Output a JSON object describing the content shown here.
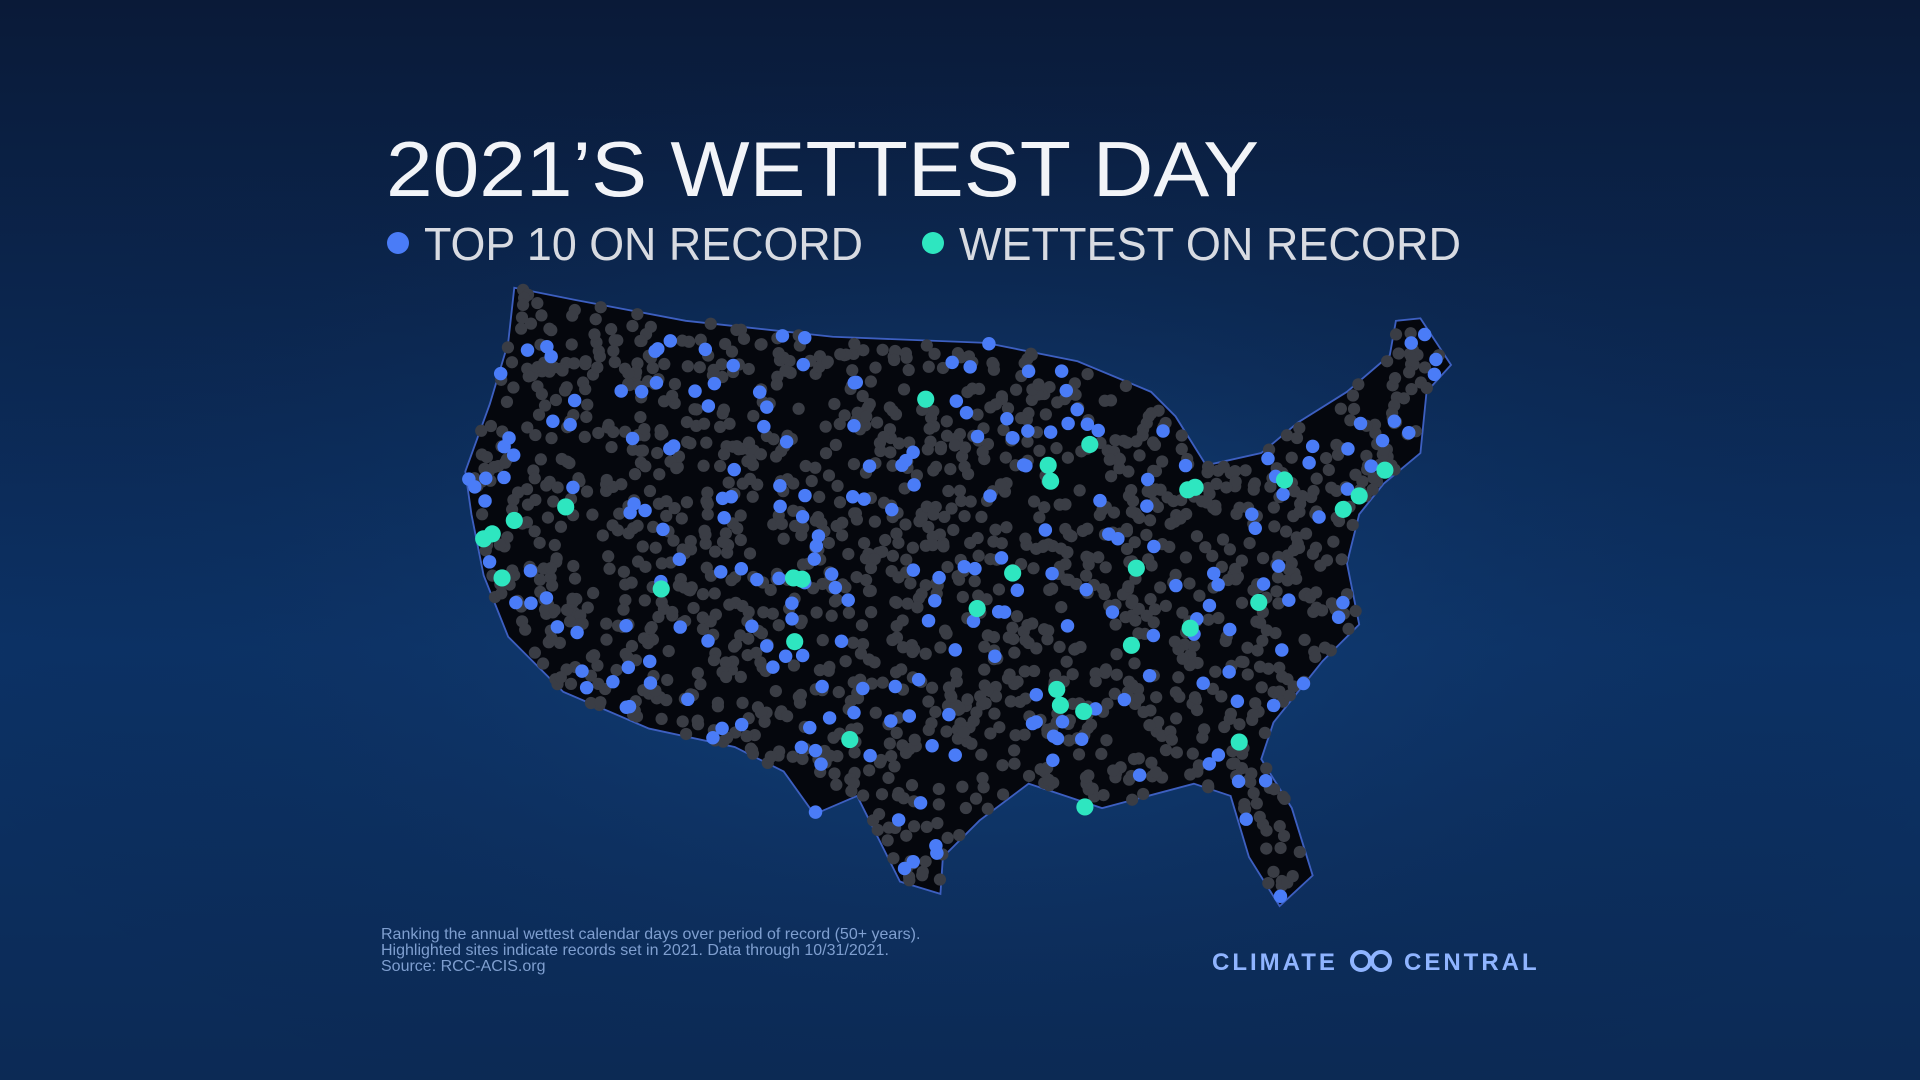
{
  "header": {
    "title": "2021’S WETTEST DAY"
  },
  "legend": [
    {
      "label": "TOP 10 ON RECORD",
      "color": "#4a7cf7"
    },
    {
      "label": "WETTEST ON RECORD",
      "color": "#2ee6c0"
    }
  ],
  "footnote": [
    "Ranking the annual wettest calendar days over period of record (50+ years).",
    "Highlighted sites indicate records set in 2021. Data through 10/31/2021.",
    "Source: RCC-ACIS.org"
  ],
  "logo": {
    "left": "CLIMATE",
    "right": "CENTRAL"
  }
}
